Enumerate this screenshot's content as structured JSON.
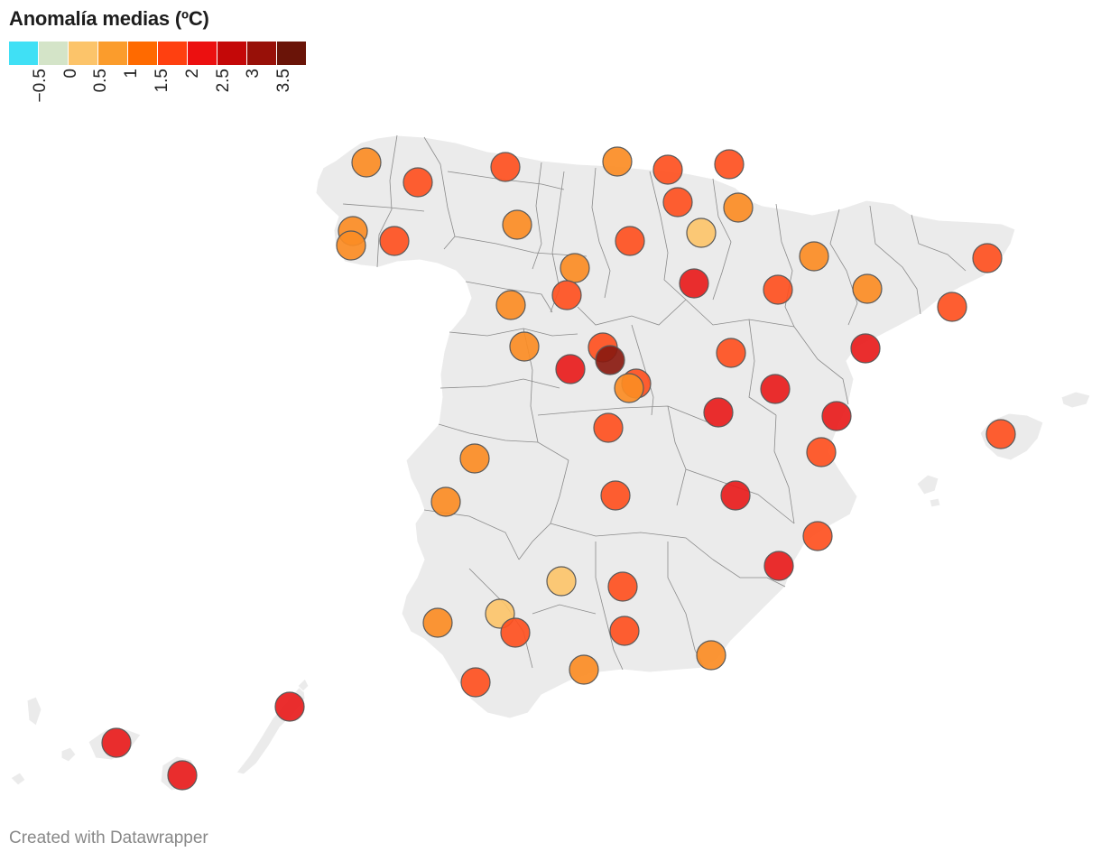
{
  "title": "Anomalía medias (ºC)",
  "legend": {
    "colors": [
      "#40e0f5",
      "#d4e4c8",
      "#fcc46a",
      "#fb9c2c",
      "#ff6a00",
      "#ff4010",
      "#ec1010",
      "#c40808",
      "#981008",
      "#6a1408"
    ],
    "ticks": [
      "−0.5",
      "0",
      "0.5",
      "1",
      "1.5",
      "2",
      "2.5",
      "3",
      "3.5"
    ]
  },
  "footer": "Created with Datawrapper",
  "map_data": {
    "type": "symbol-map",
    "region": "Spain",
    "symbol_colors": {
      "light": "#fcc46a",
      "orange": "#fb8c24",
      "red_orange": "#fe5020",
      "red": "#e81c1c",
      "dark": "#8a1a10"
    },
    "stations": [
      {
        "c": "orange"
      },
      {
        "c": "red_orange"
      },
      {
        "c": "red_orange"
      },
      {
        "c": "orange"
      },
      {
        "c": "red_orange"
      },
      {
        "c": "red_orange"
      },
      {
        "c": "red_orange"
      },
      {
        "c": "orange"
      },
      {
        "c": "orange"
      },
      {
        "c": "orange"
      },
      {
        "c": "red_orange"
      },
      {
        "c": "orange"
      },
      {
        "c": "red_orange"
      },
      {
        "c": "light"
      },
      {
        "c": "orange"
      },
      {
        "c": "red_orange"
      },
      {
        "c": "orange"
      },
      {
        "c": "red"
      },
      {
        "c": "red_orange"
      },
      {
        "c": "orange"
      },
      {
        "c": "red_orange"
      },
      {
        "c": "orange"
      },
      {
        "c": "orange"
      },
      {
        "c": "red_orange"
      },
      {
        "c": "red"
      },
      {
        "c": "dark"
      },
      {
        "c": "red_orange"
      },
      {
        "c": "orange"
      },
      {
        "c": "red_orange"
      },
      {
        "c": "red"
      },
      {
        "c": "red"
      },
      {
        "c": "red"
      },
      {
        "c": "red"
      },
      {
        "c": "red_orange"
      },
      {
        "c": "orange"
      },
      {
        "c": "red_orange"
      },
      {
        "c": "red_orange"
      },
      {
        "c": "orange"
      },
      {
        "c": "red_orange"
      },
      {
        "c": "red"
      },
      {
        "c": "red_orange"
      },
      {
        "c": "red"
      },
      {
        "c": "light"
      },
      {
        "c": "red_orange"
      },
      {
        "c": "light"
      },
      {
        "c": "orange"
      },
      {
        "c": "red_orange"
      },
      {
        "c": "red_orange"
      },
      {
        "c": "red_orange"
      },
      {
        "c": "orange"
      },
      {
        "c": "orange"
      },
      {
        "c": "red_orange"
      },
      {
        "c": "red"
      },
      {
        "c": "red"
      },
      {
        "c": "red"
      }
    ]
  }
}
